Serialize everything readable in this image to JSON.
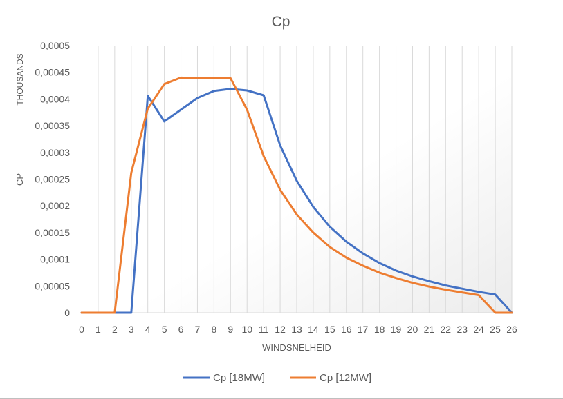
{
  "chart_data": {
    "type": "line",
    "title": "Cp",
    "xlabel": "WINDSNELHEID",
    "ylabel": "CP",
    "ylabel_units": "THOUSANDS",
    "x": [
      0,
      1,
      2,
      3,
      4,
      5,
      6,
      7,
      8,
      9,
      10,
      11,
      12,
      13,
      14,
      15,
      16,
      17,
      18,
      19,
      20,
      21,
      22,
      23,
      24,
      25,
      26
    ],
    "xlim": [
      0,
      26
    ],
    "ylim": [
      0,
      0.0005
    ],
    "yticks": [
      "0",
      "0,00005",
      "0,0001",
      "0,00015",
      "0,0002",
      "0,00025",
      "0,0003",
      "0,00035",
      "0,0004",
      "0,00045",
      "0,0005"
    ],
    "grid": "vertical",
    "legend": "bottom",
    "series": [
      {
        "name": "Cp [18MW]",
        "color": "#4472c4",
        "values": [
          0,
          0,
          0,
          0,
          0.000406,
          0.000358,
          0.00038,
          0.000402,
          0.000415,
          0.000419,
          0.000416,
          0.000407,
          0.000313,
          0.000247,
          0.000198,
          0.000161,
          0.000133,
          0.000111,
          9.3e-05,
          7.9e-05,
          6.8e-05,
          5.9e-05,
          5.1e-05,
          4.5e-05,
          3.9e-05,
          3.4e-05,
          0
        ]
      },
      {
        "name": "Cp [12MW]",
        "color": "#ed7d31",
        "values": [
          0,
          0,
          0,
          0.000262,
          0.000382,
          0.000428,
          0.00044,
          0.000439,
          0.000439,
          0.000439,
          0.00038,
          0.000293,
          0.00023,
          0.000184,
          0.00015,
          0.000123,
          0.000103,
          8.8e-05,
          7.5e-05,
          6.5e-05,
          5.6e-05,
          4.9e-05,
          4.3e-05,
          3.8e-05,
          3.3e-05,
          0,
          0
        ]
      }
    ]
  }
}
